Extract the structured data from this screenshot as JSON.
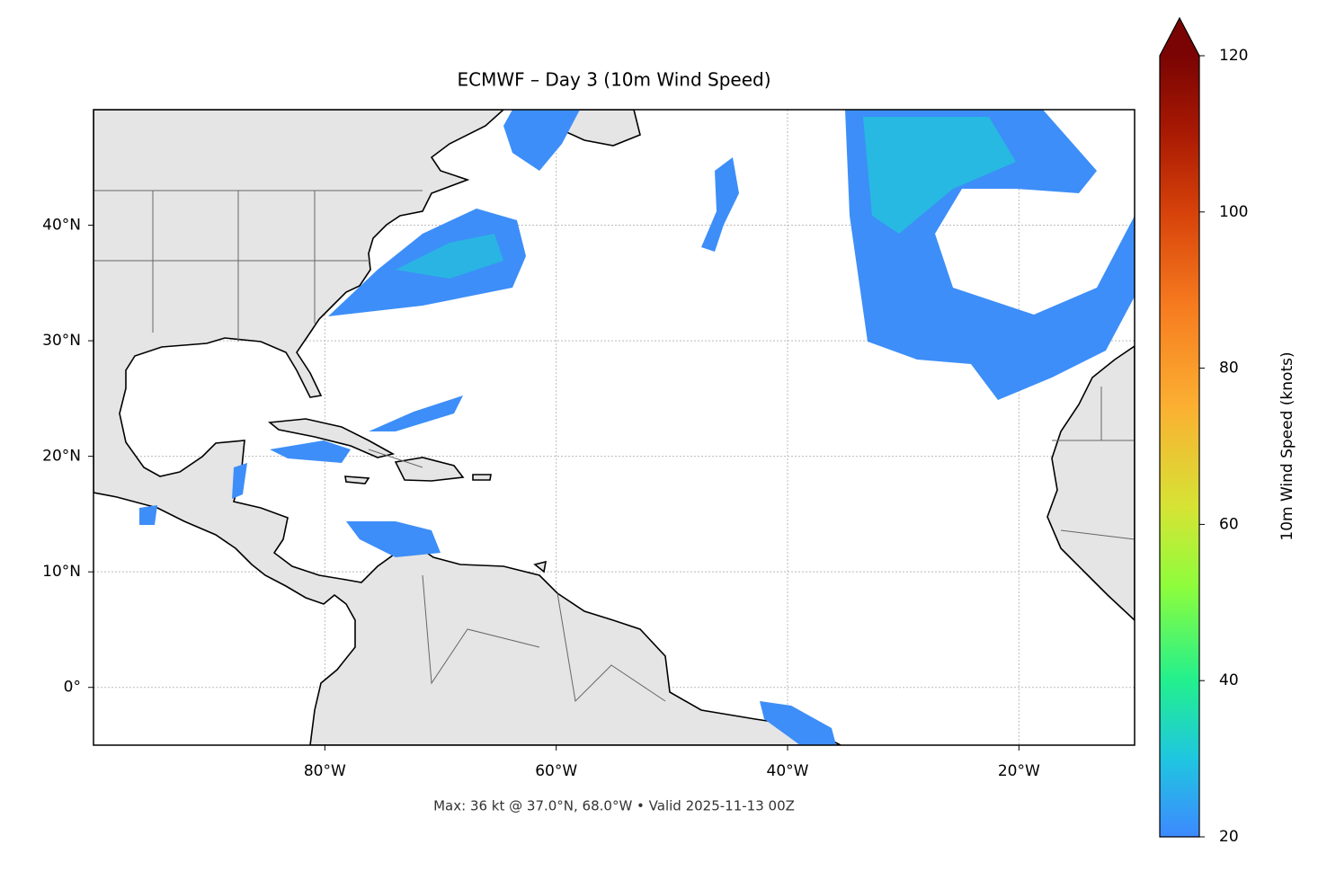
{
  "chart_data": {
    "type": "map",
    "title": "ECMWF – Day 3 (10m Wind Speed)",
    "footnote": "Max: 36 kt @ 37.0°N, 68.0°W • Valid 2025-11-13 00Z",
    "xlim": [
      -100,
      -10
    ],
    "ylim": [
      -5,
      50
    ],
    "xticks": [
      {
        "value": -80,
        "label": "80°W"
      },
      {
        "value": -60,
        "label": "60°W"
      },
      {
        "value": -40,
        "label": "40°W"
      },
      {
        "value": -20,
        "label": "20°W"
      }
    ],
    "yticks": [
      {
        "value": 0,
        "label": "0°"
      },
      {
        "value": 10,
        "label": "10°N"
      },
      {
        "value": 20,
        "label": "20°N"
      },
      {
        "value": 30,
        "label": "30°N"
      },
      {
        "value": 40,
        "label": "40°N"
      }
    ],
    "grid": true,
    "colorbar": {
      "label": "10m Wind Speed (knots)",
      "lim": [
        20,
        120
      ],
      "ticks": [
        20,
        40,
        60,
        80,
        100,
        120
      ],
      "extend": "max"
    }
  }
}
